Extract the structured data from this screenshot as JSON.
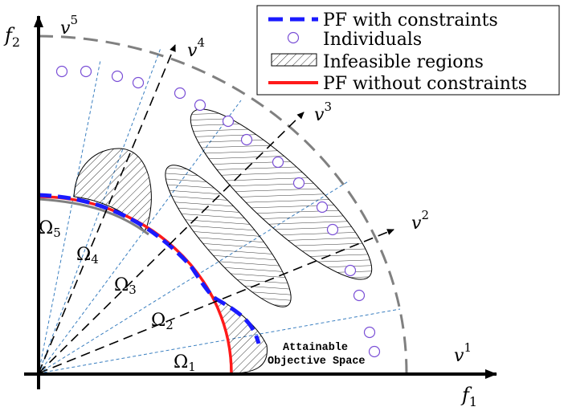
{
  "axes": {
    "f1": {
      "base": "f",
      "sub": "1"
    },
    "f2": {
      "base": "f",
      "sub": "2"
    }
  },
  "vectors": [
    {
      "base": "v",
      "sup": "1"
    },
    {
      "base": "v",
      "sup": "2"
    },
    {
      "base": "v",
      "sup": "3"
    },
    {
      "base": "v",
      "sup": "4"
    },
    {
      "base": "v",
      "sup": "5"
    }
  ],
  "regions": [
    {
      "base": "Ω",
      "sub": "1"
    },
    {
      "base": "Ω",
      "sub": "2"
    },
    {
      "base": "Ω",
      "sub": "3"
    },
    {
      "base": "Ω",
      "sub": "4"
    },
    {
      "base": "Ω",
      "sub": "5"
    }
  ],
  "annotation": {
    "line1": "Attainable",
    "line2": "Objective Space"
  },
  "legend": {
    "items": [
      {
        "label": "PF with constraints",
        "style": "dashed-blue",
        "color": "#1a1aff"
      },
      {
        "label": "Individuals",
        "style": "circle",
        "color": "#7a4fd6"
      },
      {
        "label": "Infeasible regions",
        "style": "hatched",
        "color": "#000000"
      },
      {
        "label": "PF without constraints",
        "style": "solid-red",
        "color": "#ff1a1a"
      }
    ]
  }
}
